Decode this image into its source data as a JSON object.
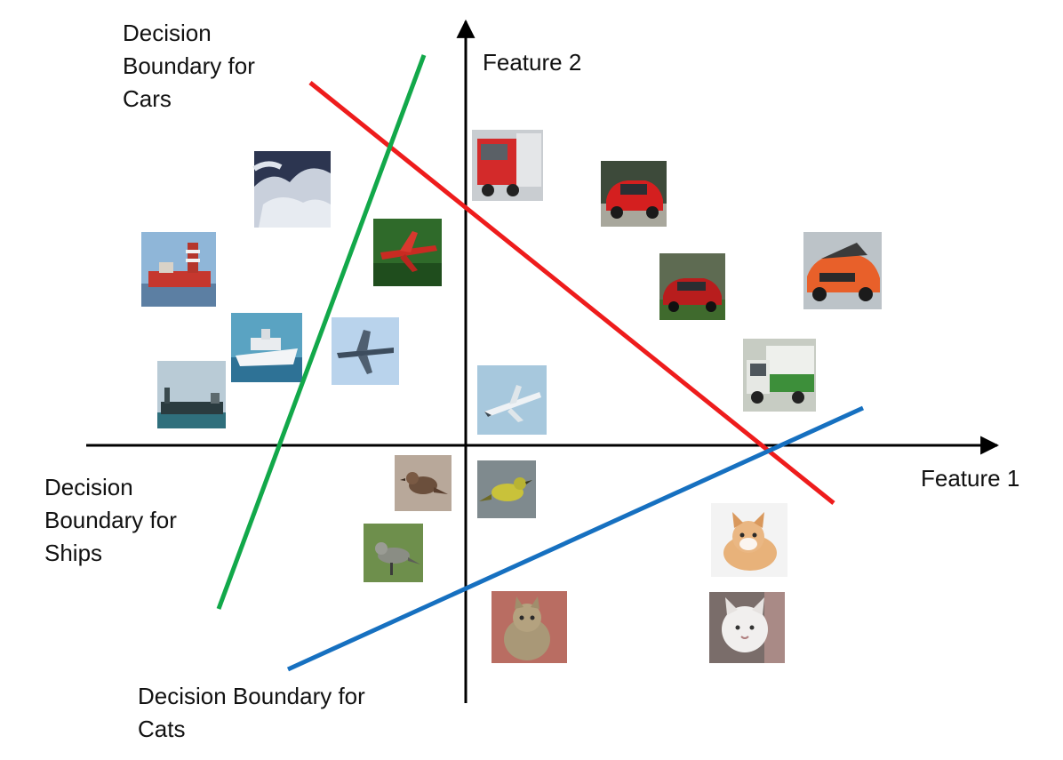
{
  "axes": {
    "x_label": "Feature 1",
    "y_label": "Feature 2",
    "color": "#000000"
  },
  "boundaries": {
    "cars": {
      "lines": [
        "Decision",
        "Boundary for",
        "Cars"
      ],
      "color": "#ee1c1c"
    },
    "ships": {
      "lines": [
        "Decision",
        "Boundary for",
        "Ships"
      ],
      "color": "#12a84a"
    },
    "cats": {
      "lines": [
        "Decision Boundary for",
        "Cats"
      ],
      "color": "#1670c0"
    }
  },
  "thumbnails": [
    {
      "name": "ship-foam-thumb",
      "icon": "ship-icon"
    },
    {
      "name": "ship-red-lightship-thumb",
      "icon": "ship-icon"
    },
    {
      "name": "ship-white-liner-thumb",
      "icon": "ship-icon"
    },
    {
      "name": "ship-tanker-thumb",
      "icon": "ship-icon"
    },
    {
      "name": "airplane-red-thumb",
      "icon": "airplane-icon"
    },
    {
      "name": "airplane-gray-thumb",
      "icon": "airplane-icon"
    },
    {
      "name": "airplane-jet-thumb",
      "icon": "airplane-icon"
    },
    {
      "name": "truck-red-thumb",
      "icon": "truck-icon"
    },
    {
      "name": "car-red-1-thumb",
      "icon": "car-icon"
    },
    {
      "name": "car-red-2-thumb",
      "icon": "car-icon"
    },
    {
      "name": "car-orange-thumb",
      "icon": "car-icon"
    },
    {
      "name": "truck-green-thumb",
      "icon": "truck-icon"
    },
    {
      "name": "bird-brown-thumb",
      "icon": "bird-icon"
    },
    {
      "name": "bird-yellow-thumb",
      "icon": "bird-icon"
    },
    {
      "name": "bird-green-thumb",
      "icon": "bird-icon"
    },
    {
      "name": "cat-tabby-thumb",
      "icon": "cat-icon"
    },
    {
      "name": "cat-orange-kitten-thumb",
      "icon": "cat-icon"
    },
    {
      "name": "cat-white-thumb",
      "icon": "cat-icon"
    }
  ]
}
